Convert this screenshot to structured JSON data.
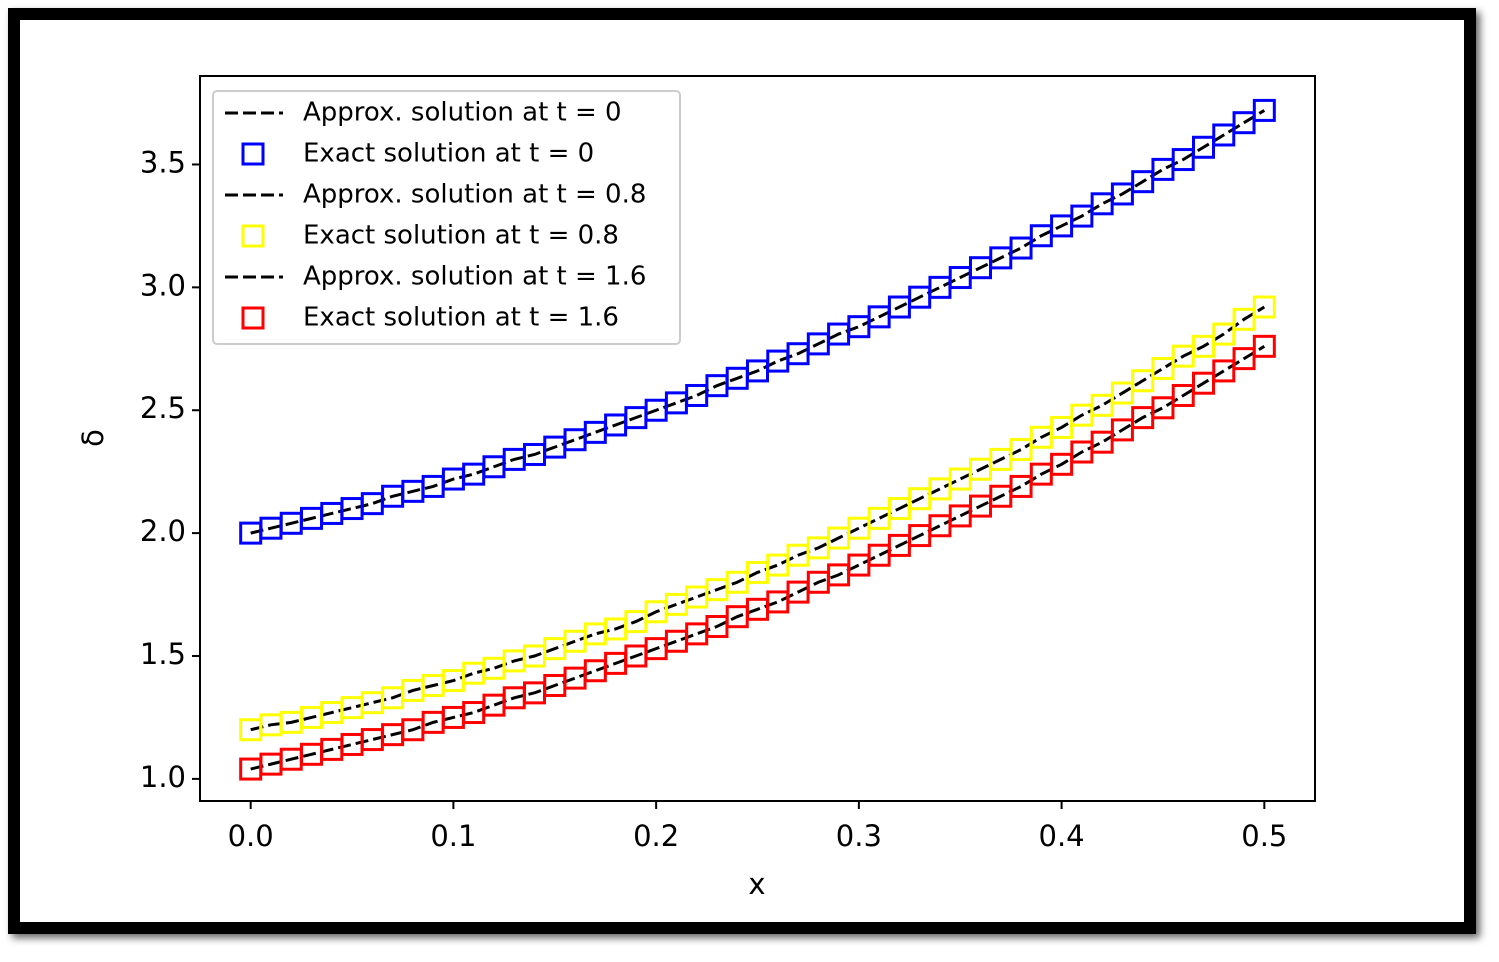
{
  "chart_data": {
    "type": "line",
    "xlabel": "x",
    "ylabel": "δ",
    "x": [
      0,
      0.01,
      0.02,
      0.03,
      0.04,
      0.05,
      0.06,
      0.07,
      0.08,
      0.09,
      0.1,
      0.11,
      0.12,
      0.13,
      0.14,
      0.15,
      0.16,
      0.17,
      0.18,
      0.19,
      0.2,
      0.21,
      0.22,
      0.23,
      0.24,
      0.25,
      0.26,
      0.27,
      0.28,
      0.29,
      0.3,
      0.31,
      0.32,
      0.33,
      0.34,
      0.35,
      0.36,
      0.37,
      0.38,
      0.39,
      0.4,
      0.41,
      0.42,
      0.43,
      0.44,
      0.45,
      0.46,
      0.47,
      0.48,
      0.49,
      0.5
    ],
    "series": [
      {
        "name": "Approx. solution at t = 0",
        "color": "#000000",
        "style": "dashed",
        "values": [
          2.0,
          2.02,
          2.04,
          2.06,
          2.08,
          2.1,
          2.12,
          2.15,
          2.17,
          2.19,
          2.22,
          2.24,
          2.27,
          2.3,
          2.32,
          2.35,
          2.38,
          2.41,
          2.44,
          2.47,
          2.5,
          2.53,
          2.56,
          2.6,
          2.63,
          2.66,
          2.7,
          2.73,
          2.77,
          2.81,
          2.84,
          2.88,
          2.92,
          2.96,
          3.0,
          3.04,
          3.08,
          3.12,
          3.16,
          3.21,
          3.25,
          3.29,
          3.34,
          3.38,
          3.43,
          3.48,
          3.52,
          3.57,
          3.62,
          3.67,
          3.72
        ]
      },
      {
        "name": "Exact solution at t = 0",
        "color": "#0000ff",
        "style": "square",
        "values": [
          2.0,
          2.02,
          2.04,
          2.06,
          2.08,
          2.1,
          2.12,
          2.15,
          2.17,
          2.19,
          2.22,
          2.24,
          2.27,
          2.3,
          2.32,
          2.35,
          2.38,
          2.41,
          2.44,
          2.47,
          2.5,
          2.53,
          2.56,
          2.6,
          2.63,
          2.66,
          2.7,
          2.73,
          2.77,
          2.81,
          2.84,
          2.88,
          2.92,
          2.96,
          3.0,
          3.04,
          3.08,
          3.12,
          3.16,
          3.21,
          3.25,
          3.29,
          3.34,
          3.38,
          3.43,
          3.48,
          3.52,
          3.57,
          3.62,
          3.67,
          3.72
        ]
      },
      {
        "name": "Approx. solution at t = 0.8",
        "color": "#000000",
        "style": "dashed",
        "values": [
          1.2,
          1.22,
          1.23,
          1.25,
          1.27,
          1.29,
          1.31,
          1.33,
          1.36,
          1.38,
          1.4,
          1.43,
          1.45,
          1.48,
          1.5,
          1.53,
          1.56,
          1.59,
          1.61,
          1.64,
          1.68,
          1.71,
          1.74,
          1.77,
          1.8,
          1.84,
          1.87,
          1.91,
          1.94,
          1.98,
          2.02,
          2.06,
          2.1,
          2.14,
          2.18,
          2.22,
          2.26,
          2.3,
          2.34,
          2.39,
          2.43,
          2.48,
          2.52,
          2.57,
          2.62,
          2.67,
          2.72,
          2.76,
          2.81,
          2.87,
          2.92
        ]
      },
      {
        "name": "Exact solution at t = 0.8",
        "color": "#ffff00",
        "style": "square",
        "values": [
          1.2,
          1.22,
          1.23,
          1.25,
          1.27,
          1.29,
          1.31,
          1.33,
          1.36,
          1.38,
          1.4,
          1.43,
          1.45,
          1.48,
          1.5,
          1.53,
          1.56,
          1.59,
          1.61,
          1.64,
          1.68,
          1.71,
          1.74,
          1.77,
          1.8,
          1.84,
          1.87,
          1.91,
          1.94,
          1.98,
          2.02,
          2.06,
          2.1,
          2.14,
          2.18,
          2.22,
          2.26,
          2.3,
          2.34,
          2.39,
          2.43,
          2.48,
          2.52,
          2.57,
          2.62,
          2.67,
          2.72,
          2.76,
          2.81,
          2.87,
          2.92
        ]
      },
      {
        "name": "Approx. solution at t = 1.6",
        "color": "#000000",
        "style": "dashed",
        "values": [
          1.04,
          1.06,
          1.08,
          1.1,
          1.12,
          1.14,
          1.16,
          1.18,
          1.2,
          1.23,
          1.25,
          1.27,
          1.3,
          1.33,
          1.35,
          1.38,
          1.41,
          1.44,
          1.47,
          1.5,
          1.53,
          1.56,
          1.59,
          1.62,
          1.66,
          1.69,
          1.72,
          1.76,
          1.8,
          1.83,
          1.87,
          1.91,
          1.95,
          1.99,
          2.03,
          2.07,
          2.11,
          2.15,
          2.19,
          2.24,
          2.28,
          2.33,
          2.37,
          2.42,
          2.47,
          2.51,
          2.56,
          2.61,
          2.66,
          2.71,
          2.76
        ]
      },
      {
        "name": "Exact solution at t = 1.6",
        "color": "#ff0000",
        "style": "square",
        "values": [
          1.04,
          1.06,
          1.08,
          1.1,
          1.12,
          1.14,
          1.16,
          1.18,
          1.2,
          1.23,
          1.25,
          1.27,
          1.3,
          1.33,
          1.35,
          1.38,
          1.41,
          1.44,
          1.47,
          1.5,
          1.53,
          1.56,
          1.59,
          1.62,
          1.66,
          1.69,
          1.72,
          1.76,
          1.8,
          1.83,
          1.87,
          1.91,
          1.95,
          1.99,
          2.03,
          2.07,
          2.11,
          2.15,
          2.19,
          2.24,
          2.28,
          2.33,
          2.37,
          2.42,
          2.47,
          2.51,
          2.56,
          2.61,
          2.66,
          2.71,
          2.76
        ]
      }
    ],
    "xlim": [
      -0.025,
      0.525
    ],
    "xticks": [
      {
        "value": 0,
        "label": "0.0"
      },
      0.1,
      0.2,
      0.3,
      0.4,
      0.5
    ],
    "ylim": [
      0.91,
      3.86
    ],
    "yticks": [
      {
        "value": 1,
        "label": "1.0"
      },
      1.5,
      {
        "value": 2,
        "label": "2.0"
      },
      2.5,
      {
        "value": 3,
        "label": "3.0"
      },
      3.5
    ],
    "grid": false,
    "legend": "upper left"
  }
}
